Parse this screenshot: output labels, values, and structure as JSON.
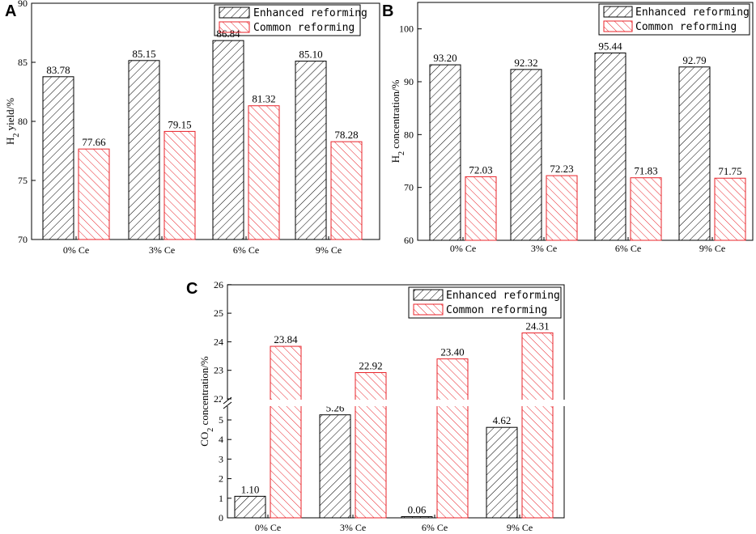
{
  "figure": {
    "legend": {
      "enhanced": "Enhanced reforming",
      "common": "Common reforming"
    },
    "colors": {
      "enhanced": "#000000",
      "common": "#e8232a"
    }
  },
  "chart_data": [
    {
      "panel": "A",
      "type": "bar",
      "categories": [
        "0% Ce",
        "3% Ce",
        "6% Ce",
        "9% Ce"
      ],
      "series": [
        {
          "name": "Enhanced reforming",
          "values": [
            83.78,
            85.15,
            86.84,
            85.1
          ],
          "labels": [
            "83.78",
            "85.15",
            "86.84",
            "85.10"
          ]
        },
        {
          "name": "Common reforming",
          "values": [
            77.66,
            79.15,
            81.32,
            78.28
          ],
          "labels": [
            "77.66",
            "79.15",
            "81.32",
            "78.28"
          ]
        }
      ],
      "ylabel_main": "H",
      "ylabel_sub": "2",
      "ylabel_rest": " yield/%",
      "ylim": [
        70,
        90
      ],
      "yticks": [
        70,
        75,
        80,
        85,
        90
      ],
      "legend_position": "top-right"
    },
    {
      "panel": "B",
      "type": "bar",
      "categories": [
        "0% Ce",
        "3% Ce",
        "6% Ce",
        "9% Ce"
      ],
      "series": [
        {
          "name": "Enhanced reforming",
          "values": [
            93.2,
            92.32,
            95.44,
            92.79
          ],
          "labels": [
            "93.20",
            "92.32",
            "95.44",
            "92.79"
          ]
        },
        {
          "name": "Common reforming",
          "values": [
            72.03,
            72.23,
            71.83,
            71.75
          ],
          "labels": [
            "72.03",
            "72.23",
            "71.83",
            "71.75"
          ]
        }
      ],
      "ylabel_main": "H",
      "ylabel_sub": "2",
      "ylabel_rest": " concentration/%",
      "ylim": [
        60,
        105
      ],
      "yticks": [
        60,
        70,
        80,
        90,
        100
      ],
      "legend_position": "top-right"
    },
    {
      "panel": "C",
      "type": "bar",
      "categories": [
        "0% Ce",
        "3% Ce",
        "6% Ce",
        "9% Ce"
      ],
      "series": [
        {
          "name": "Enhanced reforming",
          "values": [
            1.1,
            5.26,
            0.06,
            4.62
          ],
          "labels": [
            "1.10",
            "5.26",
            "0.06",
            "4.62"
          ]
        },
        {
          "name": "Common reforming",
          "values": [
            23.84,
            22.92,
            23.4,
            24.31
          ],
          "labels": [
            "23.84",
            "22.92",
            "23.40",
            "24.31"
          ]
        }
      ],
      "ylabel_main": "CO",
      "ylabel_sub": "2",
      "ylabel_rest": " concentration/%",
      "ylim": [
        0,
        26
      ],
      "axis_break": {
        "lower": [
          0,
          6
        ],
        "upper": [
          22,
          26
        ]
      },
      "yticks_lower": [
        0,
        1,
        2,
        3,
        4,
        5
      ],
      "yticks_upper": [
        22,
        23,
        24,
        25,
        26
      ],
      "legend_position": "top-right"
    }
  ]
}
